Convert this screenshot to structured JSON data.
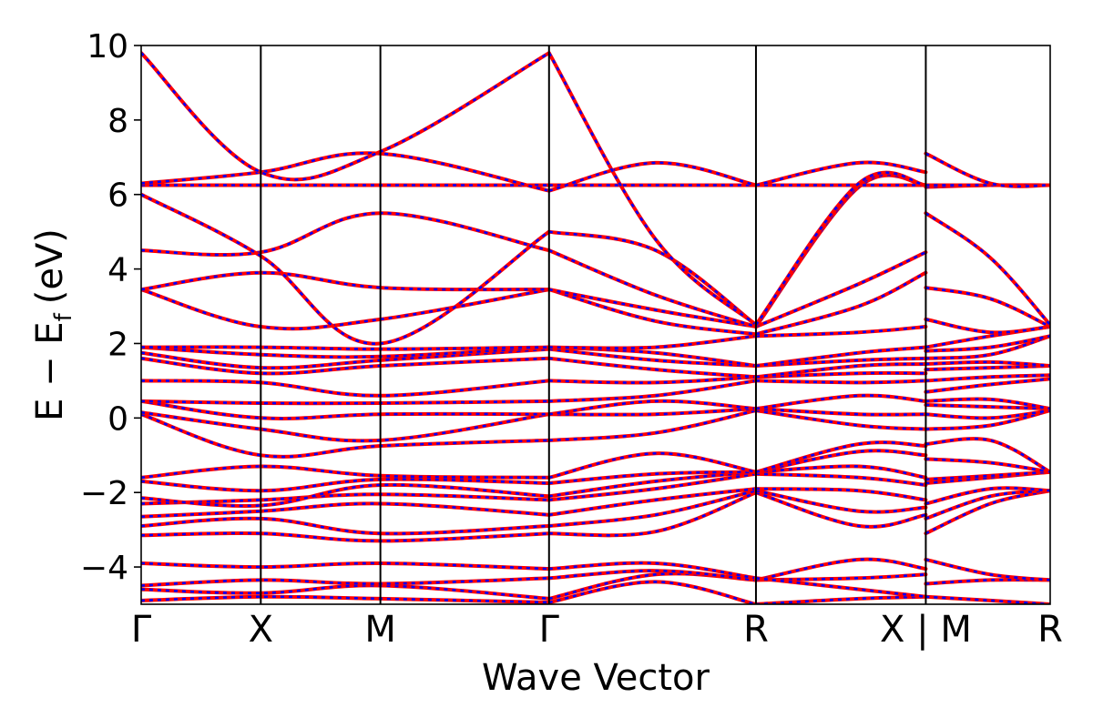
{
  "chart_data": {
    "type": "line",
    "xlabel": "Wave Vector",
    "ylabel_main": "E − E",
    "ylabel_sub": "f",
    "ylabel_unit": "(eV)",
    "ylim": [
      -5,
      10
    ],
    "yticks": [
      -4,
      -2,
      0,
      2,
      4,
      6,
      8,
      10
    ],
    "ytick_labels": [
      "−4",
      "−2",
      "0",
      "2",
      "4",
      "6",
      "8",
      "10"
    ],
    "xlim": [
      0,
      7.6
    ],
    "kpoints": [
      {
        "label": "Γ",
        "x": 0
      },
      {
        "label": "X",
        "x": 1
      },
      {
        "label": "M",
        "x": 2
      },
      {
        "label": "Γ",
        "x": 3.41
      },
      {
        "label": "R",
        "x": 5.14
      },
      {
        "label": "X | M",
        "x": 6.56
      },
      {
        "label": "R",
        "x": 7.6
      }
    ],
    "series_colors": {
      "solid": "#ff0000",
      "dashed": "#0000ff"
    },
    "segments": [
      {
        "x": [
          0,
          1,
          2,
          3.41
        ],
        "bands": [
          [
            -4.9,
            -4.8,
            -4.85,
            -4.95
          ],
          [
            -4.6,
            -4.7,
            -4.5,
            -4.85
          ],
          [
            -4.5,
            -4.35,
            -4.45,
            -4.3
          ],
          [
            -3.9,
            -4.0,
            -3.9,
            -4.05
          ],
          [
            -3.15,
            -3.1,
            -3.3,
            -3.1
          ],
          [
            -2.9,
            -2.7,
            -3.1,
            -2.9
          ],
          [
            -2.65,
            -2.5,
            -2.3,
            -2.6
          ],
          [
            -2.3,
            -2.2,
            -2.05,
            -2.2
          ],
          [
            -2.15,
            -2.35,
            -1.8,
            -2.1
          ],
          [
            -1.7,
            -1.95,
            -1.65,
            -1.75
          ],
          [
            -1.6,
            -1.3,
            -1.55,
            -1.6
          ],
          [
            0.1,
            -1.0,
            -0.75,
            -0.6
          ],
          [
            0.15,
            -0.3,
            -0.6,
            0.1
          ],
          [
            0.45,
            0.0,
            0.1,
            0.1
          ],
          [
            0.45,
            0.4,
            0.4,
            0.45
          ],
          [
            1.0,
            0.95,
            0.6,
            1.0
          ],
          [
            1.6,
            1.2,
            1.4,
            1.6
          ],
          [
            1.75,
            1.35,
            1.55,
            1.85
          ],
          [
            1.9,
            1.7,
            1.65,
            1.9
          ],
          [
            1.9,
            1.9,
            1.85,
            1.9
          ],
          [
            3.45,
            2.45,
            2.65,
            3.45
          ],
          [
            3.45,
            3.9,
            3.5,
            3.45
          ],
          [
            4.5,
            4.45,
            5.5,
            4.5
          ],
          [
            6.0,
            4.35,
            2.0,
            5.0
          ],
          [
            6.25,
            6.25,
            6.25,
            6.25
          ],
          [
            6.3,
            6.6,
            7.1,
            6.1
          ],
          [
            9.8,
            6.6,
            7.15,
            9.8
          ]
        ]
      },
      {
        "x": [
          3.41,
          4.3,
          5.14
        ],
        "bands": [
          [
            -4.95,
            -4.4,
            -5.0
          ],
          [
            -4.85,
            -4.2,
            -4.35
          ],
          [
            -4.3,
            -4.1,
            -4.35
          ],
          [
            -4.05,
            -3.9,
            -4.3
          ],
          [
            -3.1,
            -3.05,
            -2.0
          ],
          [
            -2.9,
            -2.6,
            -1.95
          ],
          [
            -2.6,
            -2.2,
            -1.9
          ],
          [
            -2.2,
            -1.9,
            -1.5
          ],
          [
            -2.1,
            -1.7,
            -1.45
          ],
          [
            -1.75,
            -1.5,
            -1.45
          ],
          [
            -1.6,
            -0.95,
            -1.45
          ],
          [
            -0.6,
            -0.4,
            0.2
          ],
          [
            0.1,
            0.1,
            0.25
          ],
          [
            0.1,
            0.45,
            0.25
          ],
          [
            0.45,
            0.6,
            1.0
          ],
          [
            1.0,
            0.95,
            1.1
          ],
          [
            1.6,
            1.3,
            1.1
          ],
          [
            1.85,
            1.55,
            1.4
          ],
          [
            1.9,
            1.75,
            1.4
          ],
          [
            1.9,
            1.9,
            2.2
          ],
          [
            3.45,
            2.6,
            2.25
          ],
          [
            3.45,
            2.9,
            2.45
          ],
          [
            4.5,
            3.3,
            2.45
          ],
          [
            5.0,
            4.5,
            2.5
          ],
          [
            6.25,
            6.25,
            6.25
          ],
          [
            6.1,
            6.85,
            6.25
          ],
          [
            9.8,
            4.8,
            2.5
          ]
        ]
      },
      {
        "x": [
          5.14,
          6.0,
          6.56
        ],
        "bands": [
          [
            -5.0,
            -4.85,
            -4.8
          ],
          [
            -4.35,
            -4.3,
            -4.2
          ],
          [
            -4.35,
            -3.8,
            -4.05
          ],
          [
            -4.3,
            -4.6,
            -4.8
          ],
          [
            -2.0,
            -2.9,
            -2.6
          ],
          [
            -1.95,
            -2.5,
            -2.4
          ],
          [
            -1.9,
            -1.95,
            -2.2
          ],
          [
            -1.5,
            -1.6,
            -1.8
          ],
          [
            -1.45,
            -1.3,
            -1.6
          ],
          [
            -1.45,
            -0.9,
            -1.0
          ],
          [
            -1.45,
            -0.7,
            -0.75
          ],
          [
            0.2,
            -0.2,
            -0.3
          ],
          [
            0.25,
            0.1,
            0.1
          ],
          [
            0.25,
            0.6,
            0.45
          ],
          [
            1.0,
            0.95,
            1.0
          ],
          [
            1.1,
            1.2,
            1.2
          ],
          [
            1.1,
            1.4,
            1.45
          ],
          [
            1.4,
            1.55,
            1.6
          ],
          [
            1.4,
            1.75,
            1.9
          ],
          [
            2.2,
            2.3,
            2.45
          ],
          [
            2.25,
            3.0,
            3.9
          ],
          [
            2.45,
            3.6,
            4.45
          ],
          [
            2.45,
            6.2,
            6.25
          ],
          [
            2.5,
            6.25,
            6.25
          ],
          [
            6.25,
            6.25,
            6.25
          ],
          [
            6.25,
            6.85,
            6.6
          ],
          [
            2.5,
            6.3,
            6.25
          ]
        ]
      },
      {
        "x": [
          6.56,
          7.1,
          7.6
        ],
        "bands": [
          [
            -4.8,
            -4.9,
            -5.0
          ],
          [
            -4.45,
            -4.35,
            -4.35
          ],
          [
            -3.8,
            -4.2,
            -4.35
          ],
          [
            -3.1,
            -2.3,
            -1.95
          ],
          [
            -2.7,
            -2.1,
            -1.95
          ],
          [
            -2.3,
            -1.9,
            -1.95
          ],
          [
            -1.75,
            -1.6,
            -1.45
          ],
          [
            -1.65,
            -1.55,
            -1.45
          ],
          [
            -1.1,
            -1.2,
            -1.45
          ],
          [
            -0.7,
            -0.6,
            -1.45
          ],
          [
            -0.3,
            -0.2,
            0.2
          ],
          [
            0.1,
            0.0,
            0.2
          ],
          [
            0.35,
            0.3,
            0.25
          ],
          [
            0.45,
            0.5,
            0.25
          ],
          [
            0.7,
            0.9,
            1.05
          ],
          [
            1.0,
            1.1,
            1.15
          ],
          [
            1.3,
            1.35,
            1.4
          ],
          [
            1.45,
            1.5,
            1.4
          ],
          [
            1.6,
            1.7,
            2.2
          ],
          [
            1.8,
            1.9,
            2.2
          ],
          [
            1.9,
            2.2,
            2.45
          ],
          [
            2.65,
            2.3,
            2.45
          ],
          [
            3.5,
            3.2,
            2.45
          ],
          [
            5.5,
            4.3,
            2.5
          ],
          [
            6.2,
            6.25,
            6.25
          ],
          [
            6.25,
            6.25,
            6.25
          ],
          [
            7.1,
            6.3,
            6.25
          ]
        ]
      }
    ]
  }
}
